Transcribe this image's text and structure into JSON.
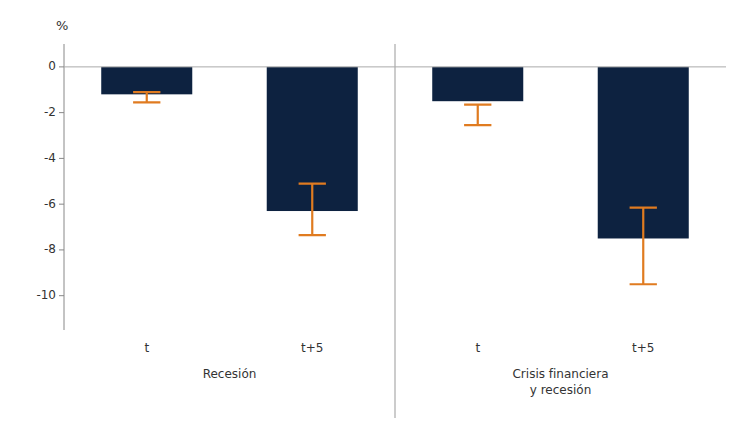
{
  "chart_data": {
    "type": "bar",
    "categories": [
      "t",
      "t+5",
      "t",
      "t+5"
    ],
    "values": [
      -1.2,
      -6.3,
      -1.5,
      -7.5
    ],
    "error_lower": [
      -1.55,
      -7.35,
      -2.55,
      -9.5
    ],
    "error_upper": [
      -1.1,
      -5.1,
      -1.65,
      -6.15
    ],
    "group_labels": [
      "Recesión",
      "Crisis financiera\ny recesión"
    ],
    "ylabel": "%",
    "color": "#0d2240",
    "error_color": "#e07b20",
    "ylim": [
      -11.5,
      1.0
    ],
    "yticks": [
      0,
      -2,
      -4,
      -6,
      -8,
      -10
    ],
    "grid": false
  }
}
